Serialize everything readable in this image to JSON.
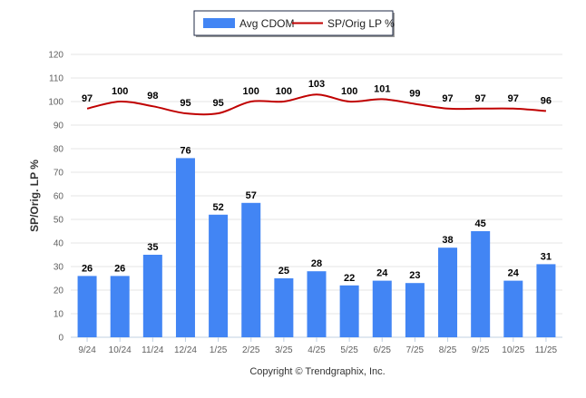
{
  "chart_data": {
    "type": "bar",
    "ylabel": "SP/Orig. LP %",
    "ylim": [
      0,
      120
    ],
    "ytick_step": 10,
    "grid": true,
    "legend_placement": "top-center",
    "categories": [
      "9/24",
      "10/24",
      "11/24",
      "12/24",
      "1/25",
      "2/25",
      "3/25",
      "4/25",
      "5/25",
      "6/25",
      "7/25",
      "8/25",
      "9/25",
      "10/25",
      "11/25"
    ],
    "series": [
      {
        "name": "Avg CDOM",
        "type": "bar",
        "color": "#4285f4",
        "values": [
          26,
          26,
          35,
          76,
          52,
          57,
          25,
          28,
          22,
          24,
          23,
          38,
          45,
          24,
          31
        ]
      },
      {
        "name": "SP/Orig LP %",
        "type": "line",
        "color": "#c00000",
        "values": [
          97,
          100,
          98,
          95,
          95,
          100,
          100,
          103,
          100,
          101,
          99,
          97,
          97,
          97,
          96
        ]
      }
    ],
    "credit": "Copyright © Trendgraphix, Inc."
  }
}
